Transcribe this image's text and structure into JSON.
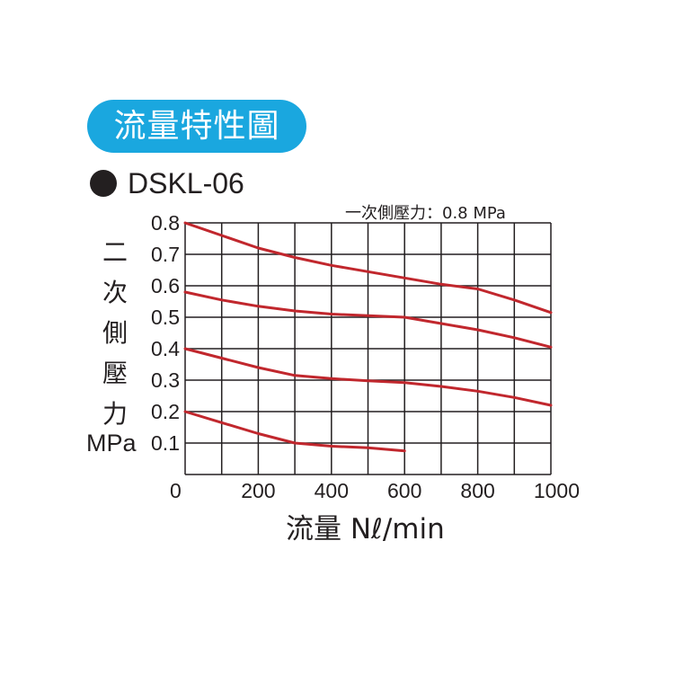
{
  "header": {
    "title": "流量特性圖",
    "model": "DSKL-06"
  },
  "colors": {
    "pill": "#1aa7df",
    "curve": "#c1272d",
    "grid": "#231f20"
  },
  "chart_data": {
    "type": "line",
    "title": "一次側壓力：0.8 MPa",
    "xlabel": "流量 Nℓ/min",
    "ylabel": "二次側壓力",
    "yunit": "MPa",
    "xlim": [
      0,
      1000
    ],
    "ylim": [
      0,
      0.8
    ],
    "grid": true,
    "x_ticks": [
      "0",
      "200",
      "400",
      "600",
      "800",
      "1000"
    ],
    "y_ticks": [
      "0.1",
      "0.2",
      "0.3",
      "0.4",
      "0.5",
      "0.6",
      "0.7",
      "0.8"
    ],
    "series": [
      {
        "x": [
          0,
          100,
          200,
          300,
          400,
          500,
          600,
          700,
          800,
          900,
          1000
        ],
        "y": [
          0.8,
          0.76,
          0.72,
          0.69,
          0.665,
          0.645,
          0.625,
          0.605,
          0.59,
          0.555,
          0.515
        ]
      },
      {
        "x": [
          0,
          100,
          200,
          300,
          400,
          500,
          600,
          700,
          800,
          900,
          1000
        ],
        "y": [
          0.58,
          0.555,
          0.535,
          0.52,
          0.51,
          0.505,
          0.5,
          0.48,
          0.46,
          0.435,
          0.405
        ]
      },
      {
        "x": [
          0,
          100,
          200,
          300,
          400,
          500,
          600,
          700,
          800,
          900,
          1000
        ],
        "y": [
          0.4,
          0.37,
          0.34,
          0.315,
          0.305,
          0.298,
          0.292,
          0.28,
          0.265,
          0.245,
          0.22
        ]
      },
      {
        "x": [
          0,
          100,
          200,
          300,
          400,
          500,
          600
        ],
        "y": [
          0.2,
          0.165,
          0.13,
          0.1,
          0.09,
          0.085,
          0.075
        ]
      }
    ]
  }
}
